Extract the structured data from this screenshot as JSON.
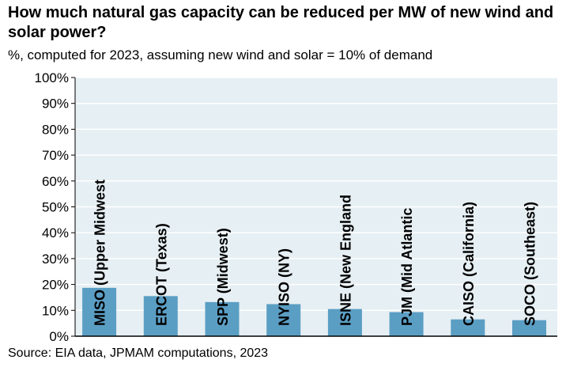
{
  "chart_data": {
    "type": "bar",
    "title": "How much natural gas capacity can be reduced per MW of new wind and solar power?",
    "subtitle": "%, computed for 2023, assuming new wind and solar = 10% of demand",
    "source": "Source: EIA data, JPMAM computations, 2023",
    "categories": [
      "MISO (Upper Midwest",
      "ERCOT (Texas)",
      "SPP (Midwest)",
      "NYISO (NY)",
      "ISNE (New England",
      "PJM (Mid Atlantic",
      "CAISO (California)",
      "SOCO (Southeast)"
    ],
    "values": [
      18.7,
      15.5,
      13.2,
      12.4,
      10.5,
      9.3,
      6.5,
      6.2
    ],
    "ylim": [
      0,
      100
    ],
    "yticks": [
      "0%",
      "10%",
      "20%",
      "30%",
      "40%",
      "50%",
      "60%",
      "70%",
      "80%",
      "90%",
      "100%"
    ],
    "xlabel": "",
    "ylabel": "",
    "grid": true,
    "colors": {
      "bar": "#5b9ec4",
      "plot_bg": "#e6eff3",
      "grid": "#ffffff"
    }
  }
}
